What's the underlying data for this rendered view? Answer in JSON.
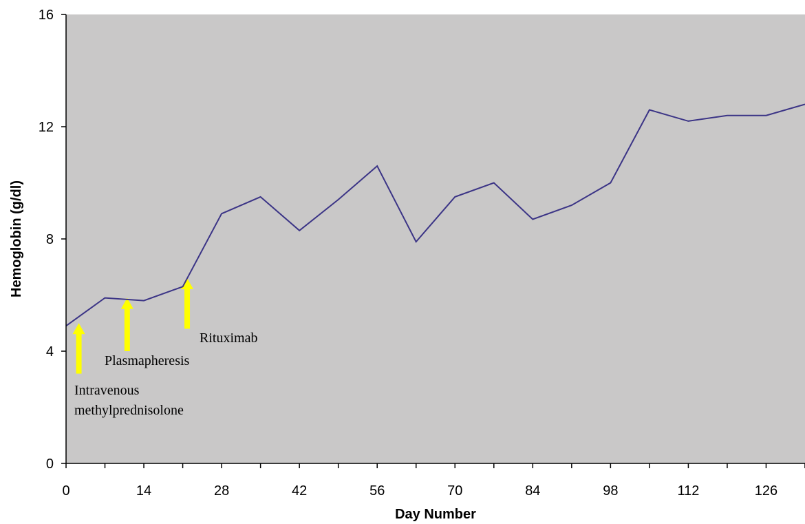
{
  "chart_data": {
    "type": "line",
    "title": "",
    "xlabel": "Day Number",
    "ylabel": "Hemoglobin (g/dl)",
    "xlim": [
      0,
      133
    ],
    "ylim": [
      0,
      16
    ],
    "x_ticks": [
      0,
      14,
      28,
      42,
      56,
      70,
      84,
      98,
      112,
      126
    ],
    "y_ticks": [
      0,
      4,
      8,
      12,
      16
    ],
    "grid": false,
    "plot_background": "#c9c8c8",
    "series": [
      {
        "color": "#3b3486",
        "x": [
          0,
          7,
          14,
          21,
          28,
          35,
          42,
          49,
          56,
          63,
          70,
          77,
          84,
          91,
          98,
          105,
          112,
          119,
          126,
          133
        ],
        "y": [
          4.9,
          5.9,
          5.8,
          6.3,
          8.9,
          9.5,
          8.3,
          9.4,
          10.6,
          7.9,
          9.5,
          10.0,
          8.7,
          9.2,
          10.0,
          12.6,
          12.2,
          12.4,
          12.4,
          12.8
        ]
      }
    ],
    "annotations": [
      {
        "label": "Intravenous",
        "label2": "methylprednisolone",
        "day": 2.3,
        "arrow_tip": 5.0,
        "arrow_base": 3.2,
        "color": "#ffff00"
      },
      {
        "label": "Plasmapheresis",
        "day": 11,
        "arrow_tip": 5.9,
        "arrow_base": 4.0,
        "color": "#ffff00"
      },
      {
        "label": "Rituximab",
        "day": 21.8,
        "arrow_tip": 6.6,
        "arrow_base": 4.8,
        "color": "#ffff00"
      }
    ]
  }
}
